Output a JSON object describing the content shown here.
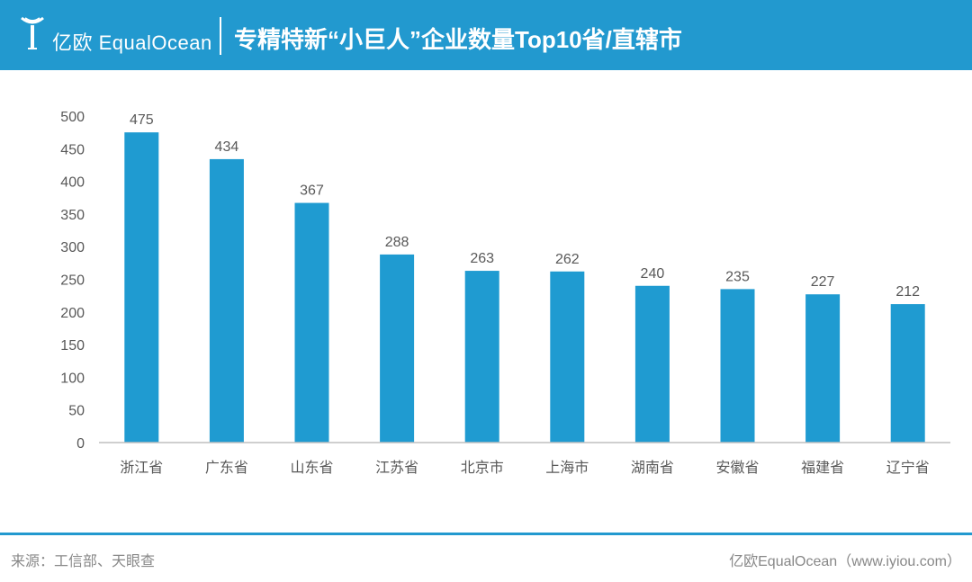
{
  "header": {
    "logo_text": "亿欧 EqualOcean",
    "title": "专精特新“小巨人”企业数量Top10省/直辖市"
  },
  "colors": {
    "brand": "#2299cf",
    "bar": "#1f9bd1",
    "axis": "#bfbfbf",
    "text": "#595959"
  },
  "chart_data": {
    "type": "bar",
    "title": "专精特新“小巨人”企业数量Top10省/直辖市",
    "categories": [
      "浙江省",
      "广东省",
      "山东省",
      "江苏省",
      "北京市",
      "上海市",
      "湖南省",
      "安徽省",
      "福建省",
      "辽宁省"
    ],
    "values": [
      475,
      434,
      367,
      288,
      263,
      262,
      240,
      235,
      227,
      212
    ],
    "xlabel": "",
    "ylabel": "",
    "ylim": [
      0,
      500
    ],
    "yticks": [
      0,
      50,
      100,
      150,
      200,
      250,
      300,
      350,
      400,
      450,
      500
    ],
    "grid": false,
    "legend": "none",
    "data_labels": true
  },
  "footer": {
    "source": "来源：工信部、天眼查",
    "brand": "亿欧EqualOcean（www.iyiou.com）"
  }
}
